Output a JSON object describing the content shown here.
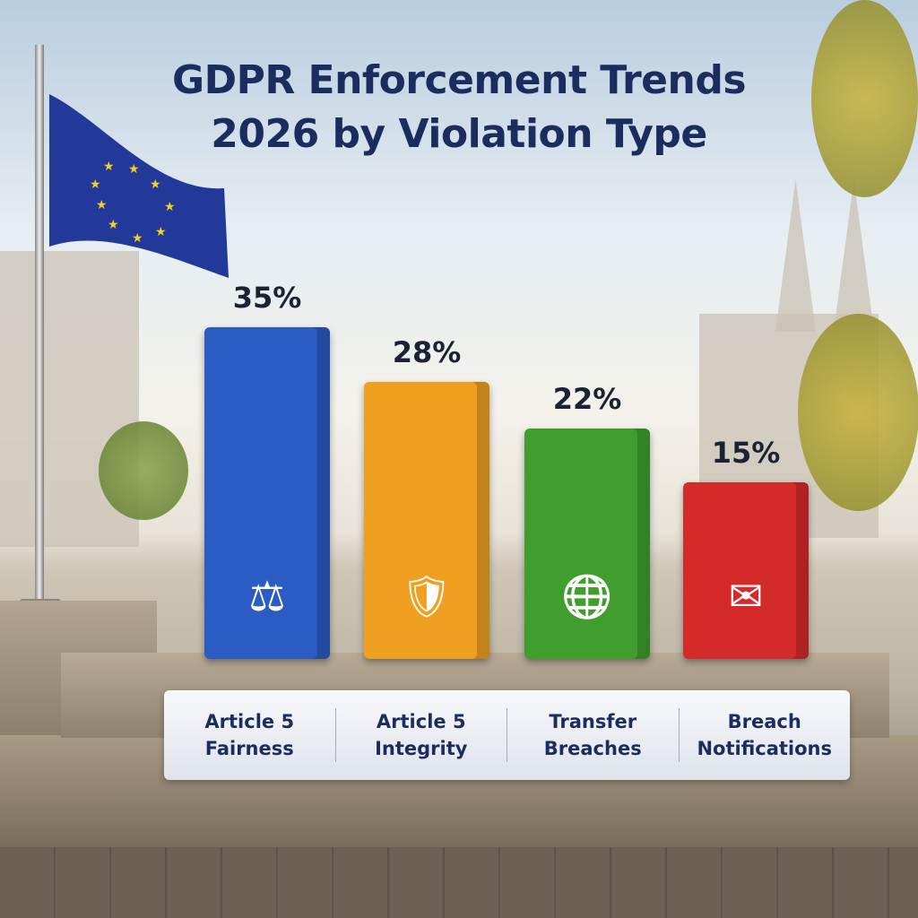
{
  "title_line1": "GDPR Enforcement Trends",
  "title_line2": "2026 by Violation Type",
  "chart_data": {
    "type": "bar",
    "title": "GDPR Enforcement Trends 2026 by Violation Type",
    "categories": [
      "Article 5 Fairness",
      "Article 5 Integrity",
      "Transfer Breaches",
      "Breach Notifications"
    ],
    "category_lines": [
      [
        "Article 5",
        "Fairness"
      ],
      [
        "Article 5",
        "Integrity"
      ],
      [
        "Transfer",
        "Breaches"
      ],
      [
        "Breach",
        "Notifications"
      ]
    ],
    "values": [
      35,
      28,
      22,
      15
    ],
    "value_labels": [
      "35%",
      "28%",
      "22%",
      "15%"
    ],
    "colors": [
      "#2a5cc4",
      "#f0a020",
      "#3f9e2e",
      "#d42a2a"
    ],
    "icons": [
      "scales-icon",
      "shield-check-icon",
      "globe-plane-icon",
      "envelope-icon"
    ],
    "grid": false
  }
}
